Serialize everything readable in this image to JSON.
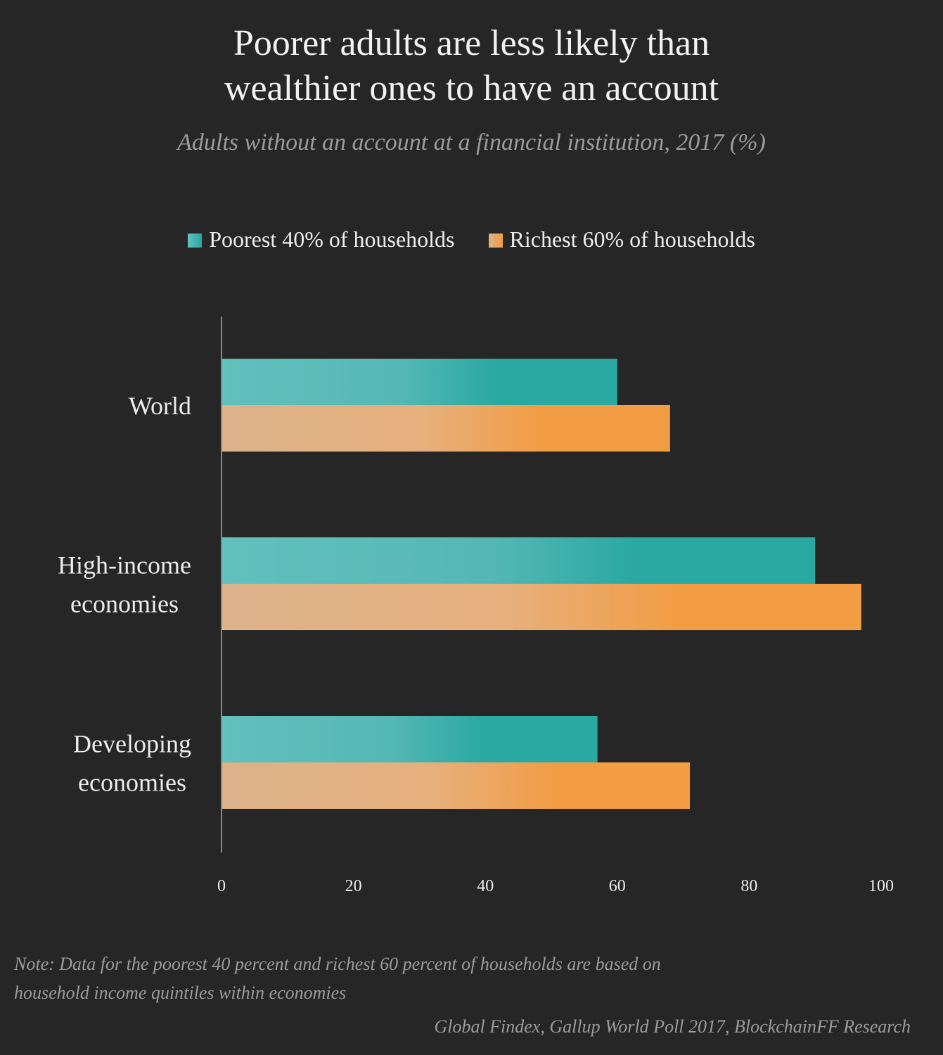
{
  "header": {
    "title_line1": "Poorer adults are less likely than",
    "title_line2": "wealthier ones to have an account",
    "subtitle": "Adults without an account at a financial institution, 2017 (%)"
  },
  "legend": {
    "poorest_label": "Poorest 40% of households",
    "richest_label": "Richest 60% of households"
  },
  "colors": {
    "poorest_light": "#62c0bd",
    "poorest_dark": "#2aa8a2",
    "richest_light": "#ddb389",
    "richest_dark": "#f29c43",
    "axis": "#8a8a8a",
    "label": "#ececec"
  },
  "chart_data": {
    "type": "bar",
    "orientation": "horizontal",
    "categories": [
      [
        "World"
      ],
      [
        "High-income",
        "economies"
      ],
      [
        "Developing",
        "economies"
      ]
    ],
    "series": [
      {
        "name": "Poorest 40% of households",
        "values": [
          60,
          90,
          57
        ]
      },
      {
        "name": "Richest 60% of households",
        "values": [
          68,
          97,
          71
        ]
      }
    ],
    "xlim": [
      0,
      100
    ],
    "xticks": [
      "0",
      "20",
      "40",
      "60",
      "80",
      "100"
    ],
    "legend_position": "top",
    "grid": false
  },
  "footer": {
    "note_line1": "Note: Data for the poorest 40 percent and richest 60 percent of households are based on",
    "note_line2": "household income quintiles within economies",
    "source": "Global Findex, Gallup World Poll 2017, BlockchainFF Research"
  }
}
